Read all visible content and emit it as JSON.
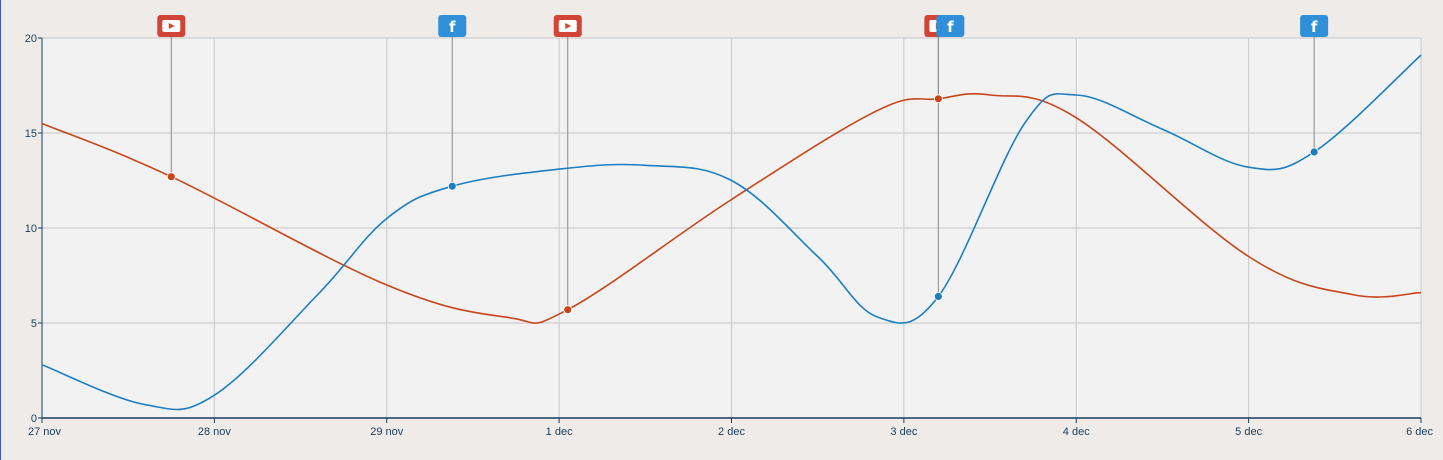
{
  "chart_data": {
    "type": "line",
    "x_ticks": [
      "27 nov",
      "28 nov",
      "29 nov",
      "1 dec",
      "2 dec",
      "3 dec",
      "4 dec",
      "5 dec",
      "6 dec"
    ],
    "y_ticks": [
      "0",
      "5",
      "10",
      "15",
      "20"
    ],
    "ylim": [
      0,
      20
    ],
    "grid": true,
    "series": [
      {
        "color": "#c7451b",
        "points": [
          {
            "x": 0.0,
            "y": 15.5
          },
          {
            "x": 0.75,
            "y": 12.7
          },
          {
            "x": 2.0,
            "y": 7.0
          },
          {
            "x": 2.7,
            "y": 5.3
          },
          {
            "x": 3.05,
            "y": 5.7
          },
          {
            "x": 4.0,
            "y": 11.5
          },
          {
            "x": 4.85,
            "y": 16.2
          },
          {
            "x": 5.2,
            "y": 16.8
          },
          {
            "x": 5.5,
            "y": 17.0
          },
          {
            "x": 6.0,
            "y": 15.8
          },
          {
            "x": 7.0,
            "y": 8.5
          },
          {
            "x": 7.6,
            "y": 6.5
          },
          {
            "x": 8.0,
            "y": 6.6
          }
        ],
        "markers": [
          {
            "x": 0.75,
            "y": 12.7,
            "event": "youtube"
          },
          {
            "x": 3.05,
            "y": 5.7,
            "event": "youtube"
          },
          {
            "x": 5.2,
            "y": 16.8,
            "event": "youtube"
          }
        ]
      },
      {
        "color": "#1c7ec0",
        "points": [
          {
            "x": 0.0,
            "y": 2.8
          },
          {
            "x": 0.6,
            "y": 0.7
          },
          {
            "x": 1.0,
            "y": 1.2
          },
          {
            "x": 1.6,
            "y": 6.5
          },
          {
            "x": 2.0,
            "y": 10.5
          },
          {
            "x": 2.38,
            "y": 12.2
          },
          {
            "x": 3.0,
            "y": 13.1
          },
          {
            "x": 3.5,
            "y": 13.3
          },
          {
            "x": 4.0,
            "y": 12.5
          },
          {
            "x": 4.5,
            "y": 8.5
          },
          {
            "x": 4.85,
            "y": 5.3
          },
          {
            "x": 5.2,
            "y": 6.4
          },
          {
            "x": 5.7,
            "y": 15.5
          },
          {
            "x": 6.0,
            "y": 17.0
          },
          {
            "x": 6.5,
            "y": 15.2
          },
          {
            "x": 7.0,
            "y": 13.2
          },
          {
            "x": 7.38,
            "y": 14.0
          },
          {
            "x": 8.0,
            "y": 19.1
          }
        ],
        "markers": [
          {
            "x": 2.38,
            "y": 12.2,
            "event": "facebook"
          },
          {
            "x": 5.2,
            "y": 6.4,
            "event": "facebook"
          },
          {
            "x": 7.38,
            "y": 14.0,
            "event": "facebook"
          }
        ]
      }
    ],
    "event_flags": [
      {
        "x": 0.75,
        "event": "youtube",
        "icon": "youtube-icon",
        "color": "#d14536",
        "glyph": "▶"
      },
      {
        "x": 2.38,
        "event": "facebook",
        "icon": "facebook-icon",
        "color": "#2f8fd8",
        "glyph": "f"
      },
      {
        "x": 3.05,
        "event": "youtube",
        "icon": "youtube-icon",
        "color": "#d14536",
        "glyph": "▶"
      },
      {
        "x": 5.2,
        "event": "youtube",
        "icon": "youtube-icon",
        "color": "#d14536",
        "glyph": "▶"
      },
      {
        "x": 5.2,
        "event": "facebook",
        "icon": "facebook-icon",
        "color": "#2f8fd8",
        "glyph": "f"
      },
      {
        "x": 7.38,
        "event": "facebook",
        "icon": "facebook-icon",
        "color": "#2f8fd8",
        "glyph": "f"
      }
    ],
    "colors": {
      "plot_background": "#f2f2f2",
      "page_background": "#efebe9",
      "grid": "#cfcfcf",
      "axis": "#1a3d5c"
    }
  }
}
